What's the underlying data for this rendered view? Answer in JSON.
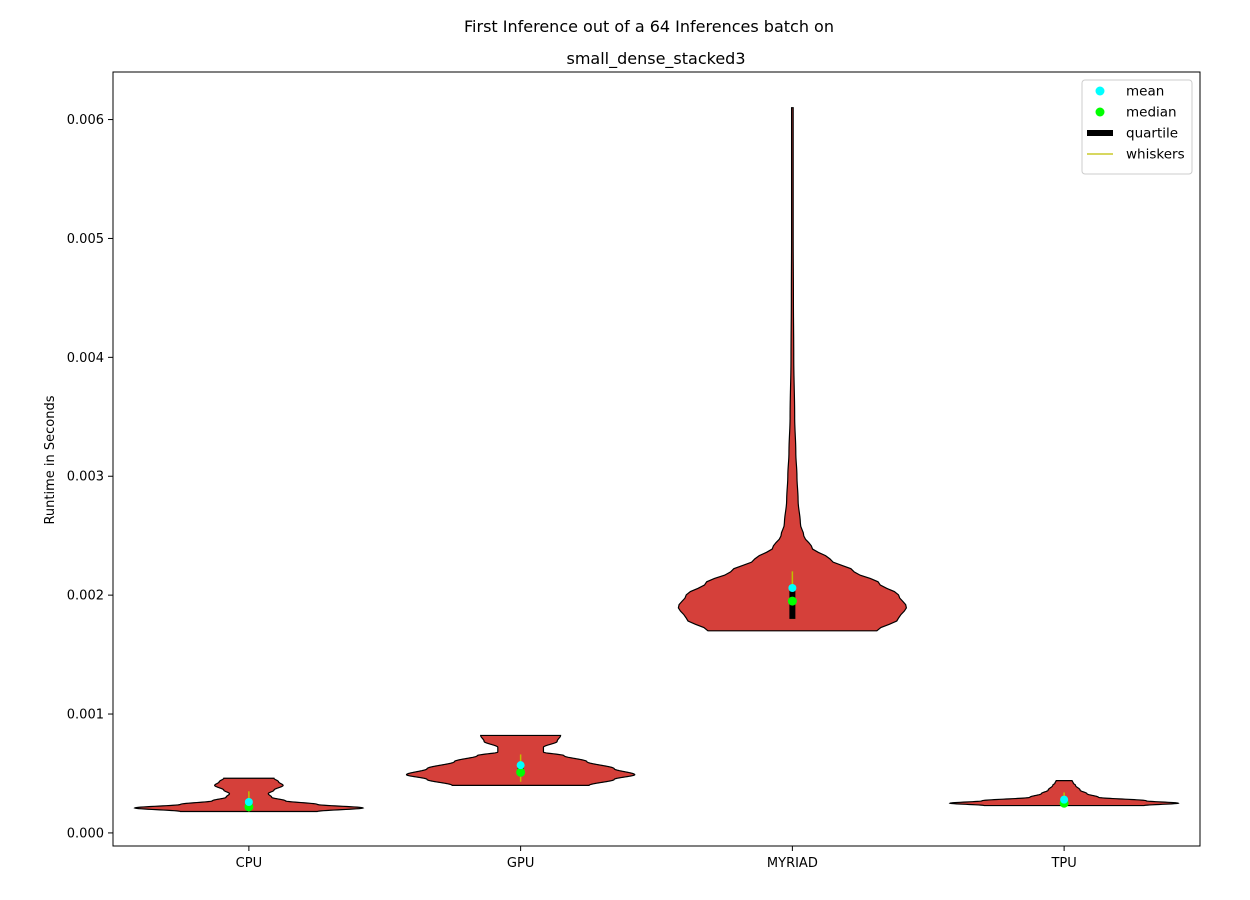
{
  "chart_data": {
    "type": "violin",
    "title_line1": "First Inference out of a 64 Inferences batch on",
    "title_line2": "small_dense_stacked3",
    "xlabel": "",
    "ylabel": "Runtime in Seconds",
    "ylim": [
      -0.00011,
      0.0064
    ],
    "yticks": [
      0.0,
      0.001,
      0.002,
      0.003,
      0.004,
      0.005,
      0.006
    ],
    "ytick_labels": [
      "0.000",
      "0.001",
      "0.002",
      "0.003",
      "0.004",
      "0.005",
      "0.006"
    ],
    "categories": [
      "CPU",
      "GPU",
      "MYRIAD",
      "TPU"
    ],
    "grid": false,
    "legend_position": "top-right",
    "legend": [
      {
        "label": "mean",
        "marker": "point",
        "color": "#00ffff"
      },
      {
        "label": "median",
        "marker": "point",
        "color": "#00ff00"
      },
      {
        "label": "quartile",
        "marker": "thick-line",
        "color": "#000000"
      },
      {
        "label": "whiskers",
        "marker": "line",
        "color": "#bfbf00"
      }
    ],
    "colors": {
      "violin_fill": "#d5403a",
      "violin_edge": "#000000",
      "mean": "#00ffff",
      "median": "#00ff00",
      "quartile": "#000000",
      "whiskers": "#bfbf00"
    },
    "series": [
      {
        "name": "CPU",
        "min": 0.00018,
        "max": 0.00046,
        "q1": 0.0002,
        "q3": 0.00027,
        "median": 0.00022,
        "mean": 0.00026,
        "whisker_low": 0.00018,
        "whisker_high": 0.00035,
        "profile": [
          [
            0.00018,
            0.6
          ],
          [
            0.00021,
            1.0
          ],
          [
            0.00024,
            0.6
          ],
          [
            0.00027,
            0.32
          ],
          [
            0.0003,
            0.2
          ],
          [
            0.00033,
            0.17
          ],
          [
            0.00036,
            0.22
          ],
          [
            0.0004,
            0.3
          ],
          [
            0.00043,
            0.26
          ],
          [
            0.00046,
            0.22
          ]
        ]
      },
      {
        "name": "GPU",
        "min": 0.0004,
        "max": 0.00082,
        "q1": 0.00049,
        "q3": 0.00058,
        "median": 0.00051,
        "mean": 0.00057,
        "whisker_low": 0.00043,
        "whisker_high": 0.00066,
        "profile": [
          [
            0.0004,
            0.6
          ],
          [
            0.00045,
            0.82
          ],
          [
            0.00049,
            1.0
          ],
          [
            0.00054,
            0.82
          ],
          [
            0.0006,
            0.58
          ],
          [
            0.00065,
            0.38
          ],
          [
            0.00068,
            0.2
          ],
          [
            0.00072,
            0.2
          ],
          [
            0.00077,
            0.32
          ],
          [
            0.00082,
            0.35
          ]
        ]
      },
      {
        "name": "MYRIAD",
        "min": 0.0017,
        "max": 0.0061,
        "q1": 0.0018,
        "q3": 0.00205,
        "median": 0.00195,
        "mean": 0.00206,
        "whisker_low": 0.0018,
        "whisker_high": 0.0022,
        "profile": [
          [
            0.0017,
            0.74
          ],
          [
            0.0018,
            0.93
          ],
          [
            0.0019,
            1.0
          ],
          [
            0.002,
            0.93
          ],
          [
            0.0021,
            0.76
          ],
          [
            0.0022,
            0.54
          ],
          [
            0.0023,
            0.33
          ],
          [
            0.0024,
            0.17
          ],
          [
            0.0025,
            0.1
          ],
          [
            0.0026,
            0.07
          ],
          [
            0.0028,
            0.05
          ],
          [
            0.003,
            0.04
          ],
          [
            0.0032,
            0.03
          ],
          [
            0.0035,
            0.02
          ],
          [
            0.004,
            0.012
          ],
          [
            0.0045,
            0.009
          ],
          [
            0.005,
            0.007
          ],
          [
            0.0055,
            0.007
          ],
          [
            0.006,
            0.007
          ],
          [
            0.0061,
            0.007
          ]
        ]
      },
      {
        "name": "TPU",
        "min": 0.00023,
        "max": 0.00044,
        "q1": 0.00024,
        "q3": 0.0003,
        "median": 0.00025,
        "mean": 0.00028,
        "whisker_low": 0.00023,
        "whisker_high": 0.00034,
        "profile": [
          [
            0.00023,
            0.7
          ],
          [
            0.00025,
            1.0
          ],
          [
            0.00027,
            0.72
          ],
          [
            0.0003,
            0.3
          ],
          [
            0.00033,
            0.2
          ],
          [
            0.00036,
            0.14
          ],
          [
            0.0004,
            0.1
          ],
          [
            0.00042,
            0.08
          ],
          [
            0.00044,
            0.07
          ]
        ]
      }
    ]
  }
}
